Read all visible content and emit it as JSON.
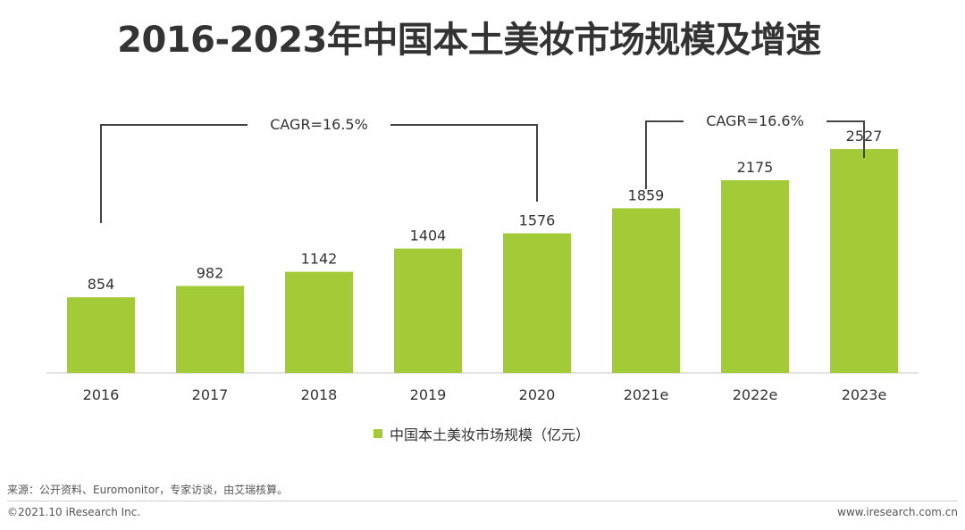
{
  "title": "2016-2023年中国本土美妆市场规模及增速",
  "chart_data": {
    "type": "bar",
    "categories": [
      "2016",
      "2017",
      "2018",
      "2019",
      "2020",
      "2021e",
      "2022e",
      "2023e"
    ],
    "series": [
      {
        "name": "中国本土美妆市场规模（亿元）",
        "values": [
          854,
          982,
          1142,
          1404,
          1576,
          1859,
          2175,
          2527
        ]
      }
    ],
    "ylim": [
      0,
      2900
    ],
    "grid": false,
    "legend_position": "bottom",
    "bar_color": "#a3cb38",
    "annotations": [
      {
        "text": "CAGR=16.5%",
        "from": "2016",
        "to": "2020"
      },
      {
        "text": "CAGR=16.6%",
        "from": "2021e",
        "to": "2023e"
      }
    ]
  },
  "footer": {
    "source": "来源：公开资料、Euromonitor，专家访谈，由艾瑞核算。",
    "copyright": "©2021.10 iResearch Inc.",
    "website": "www.iresearch.com.cn"
  }
}
